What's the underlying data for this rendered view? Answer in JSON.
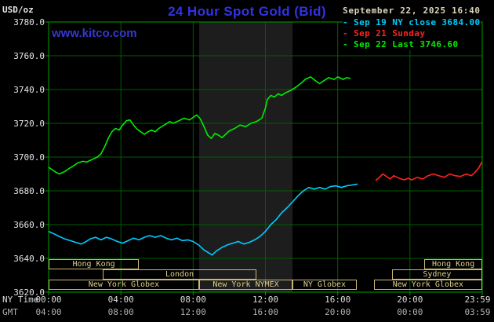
{
  "header": {
    "unit": "USD/oz",
    "title": "24 Hour Spot Gold (Bid)",
    "datetime": "September 22, 2025 16:40",
    "watermark": "www.kitco.com"
  },
  "legend": [
    {
      "id": "sep19-ny-close",
      "marker": "-",
      "label": "Sep 19 NY close 3684.00",
      "color": "#00ccff"
    },
    {
      "id": "sep21-sunday",
      "marker": "-",
      "label": "Sep 21 Sunday",
      "color": "#ff2222"
    },
    {
      "id": "sep22-last",
      "marker": "-",
      "label": "Sep 22 Last 3746.60",
      "color": "#00ee00"
    }
  ],
  "axes": {
    "y_tick_labels": [
      "3780.0",
      "3760.0",
      "3740.0",
      "3720.0",
      "3700.0",
      "3680.0",
      "3660.0",
      "3640.0",
      "3620.0"
    ],
    "tick_hours": [
      0,
      4,
      8,
      12,
      16,
      20,
      24
    ],
    "x_rows": [
      {
        "label": "NY Time",
        "ticks": [
          "00:00",
          "04:00",
          "08:00",
          "12:00",
          "16:00",
          "20:00",
          "23:59"
        ]
      },
      {
        "label": "GMT",
        "ticks": [
          "04:00",
          "08:00",
          "12:00",
          "16:00",
          "20:00",
          "00:00",
          "03:59"
        ]
      }
    ]
  },
  "sessions": [
    {
      "label": "Hong Kong",
      "row": 0,
      "start": 0,
      "end": 5.0
    },
    {
      "label": "Hong Kong",
      "row": 0,
      "start": 20.8,
      "end": 24
    },
    {
      "label": "London",
      "row": 1,
      "start": 3.0,
      "end": 11.5
    },
    {
      "label": "Sydney",
      "row": 1,
      "start": 19.0,
      "end": 24
    },
    {
      "label": "New York Globex",
      "row": 2,
      "start": 0,
      "end": 8.33
    },
    {
      "label": "New York NYMEX",
      "row": 2,
      "start": 8.33,
      "end": 13.5
    },
    {
      "label": "NY Globex",
      "row": 2,
      "start": 13.5,
      "end": 17.05
    },
    {
      "label": "New York Globex",
      "row": 2,
      "start": 18.0,
      "end": 24
    }
  ],
  "colors": {
    "background": "#000000",
    "grid": "#005e00",
    "frame": "#00a000",
    "session_box": "#c9b872",
    "session_text": "#dccf92",
    "title": "#3232e6",
    "watermark": "#3737d2",
    "date_text": "#ddd6bb",
    "axis_text": "#e6e6e6",
    "gmt_text": "#b0b0b0",
    "band": "#1d1d1d"
  },
  "chart_data": {
    "type": "line",
    "title": "24 Hour Spot Gold (Bid)",
    "xlabel": "NY Time (hours)",
    "ylabel": "USD/oz",
    "xlim": [
      0,
      24
    ],
    "ylim": [
      3620,
      3780
    ],
    "grid": true,
    "legend_position": "top-right",
    "shaded_region": {
      "start": 8.33,
      "end": 13.5,
      "color": "#1d1d1d",
      "meaning": "New York NYMEX session"
    },
    "series": [
      {
        "id": "sep19-ny-close",
        "name": "Sep 19 NY close",
        "close": 3684.0,
        "color": "#00ccff",
        "points": [
          [
            0,
            3656
          ],
          [
            0.3,
            3654.5
          ],
          [
            0.6,
            3653
          ],
          [
            0.9,
            3651.5
          ],
          [
            1.2,
            3650.5
          ],
          [
            1.5,
            3649.5
          ],
          [
            1.8,
            3648.5
          ],
          [
            2.0,
            3649.5
          ],
          [
            2.3,
            3651.5
          ],
          [
            2.6,
            3652.5
          ],
          [
            2.9,
            3651
          ],
          [
            3.2,
            3652.5
          ],
          [
            3.5,
            3651.5
          ],
          [
            3.8,
            3650
          ],
          [
            4.1,
            3649
          ],
          [
            4.4,
            3650.5
          ],
          [
            4.7,
            3652
          ],
          [
            5.0,
            3651
          ],
          [
            5.3,
            3652.5
          ],
          [
            5.6,
            3653.5
          ],
          [
            5.9,
            3652.5
          ],
          [
            6.2,
            3653.5
          ],
          [
            6.5,
            3652
          ],
          [
            6.8,
            3651
          ],
          [
            7.1,
            3652
          ],
          [
            7.4,
            3650.5
          ],
          [
            7.7,
            3651
          ],
          [
            8.0,
            3650
          ],
          [
            8.3,
            3648
          ],
          [
            8.6,
            3645
          ],
          [
            8.9,
            3643
          ],
          [
            9.05,
            3642
          ],
          [
            9.3,
            3644.5
          ],
          [
            9.6,
            3646.5
          ],
          [
            9.9,
            3648
          ],
          [
            10.2,
            3649
          ],
          [
            10.5,
            3650
          ],
          [
            10.8,
            3648.5
          ],
          [
            11.1,
            3649.5
          ],
          [
            11.4,
            3651
          ],
          [
            11.7,
            3653
          ],
          [
            12.0,
            3656
          ],
          [
            12.3,
            3660
          ],
          [
            12.6,
            3663
          ],
          [
            12.9,
            3667
          ],
          [
            13.2,
            3670
          ],
          [
            13.5,
            3673.5
          ],
          [
            13.8,
            3677
          ],
          [
            14.1,
            3680
          ],
          [
            14.4,
            3682
          ],
          [
            14.7,
            3681
          ],
          [
            15.0,
            3682
          ],
          [
            15.3,
            3681
          ],
          [
            15.6,
            3682.5
          ],
          [
            15.9,
            3683
          ],
          [
            16.2,
            3682
          ],
          [
            16.5,
            3683
          ],
          [
            16.8,
            3683.5
          ],
          [
            17.1,
            3684
          ]
        ]
      },
      {
        "id": "sep21-sunday",
        "name": "Sep 21 Sunday",
        "color": "#ff2222",
        "points": [
          [
            18.1,
            3686
          ],
          [
            18.3,
            3688
          ],
          [
            18.5,
            3690
          ],
          [
            18.7,
            3688.5
          ],
          [
            18.9,
            3687
          ],
          [
            19.1,
            3689
          ],
          [
            19.3,
            3688
          ],
          [
            19.5,
            3687
          ],
          [
            19.7,
            3686.5
          ],
          [
            19.9,
            3687.5
          ],
          [
            20.1,
            3686.5
          ],
          [
            20.4,
            3688
          ],
          [
            20.7,
            3687
          ],
          [
            21.0,
            3689
          ],
          [
            21.3,
            3690
          ],
          [
            21.6,
            3689
          ],
          [
            21.9,
            3688
          ],
          [
            22.2,
            3690
          ],
          [
            22.5,
            3689
          ],
          [
            22.8,
            3688.5
          ],
          [
            23.1,
            3690
          ],
          [
            23.4,
            3689
          ],
          [
            23.6,
            3691
          ],
          [
            23.8,
            3693.5
          ],
          [
            23.98,
            3697
          ]
        ]
      },
      {
        "id": "sep22-last",
        "name": "Sep 22",
        "last": 3746.6,
        "color": "#00ee00",
        "points": [
          [
            0,
            3694
          ],
          [
            0.2,
            3692.5
          ],
          [
            0.4,
            3691
          ],
          [
            0.6,
            3690
          ],
          [
            0.9,
            3691.5
          ],
          [
            1.1,
            3693
          ],
          [
            1.4,
            3695
          ],
          [
            1.6,
            3696.5
          ],
          [
            1.9,
            3697.5
          ],
          [
            2.1,
            3697
          ],
          [
            2.4,
            3698.5
          ],
          [
            2.7,
            3700
          ],
          [
            2.9,
            3702
          ],
          [
            3.1,
            3706
          ],
          [
            3.3,
            3711
          ],
          [
            3.5,
            3715
          ],
          [
            3.7,
            3717
          ],
          [
            3.9,
            3716
          ],
          [
            4.1,
            3719
          ],
          [
            4.3,
            3721.5
          ],
          [
            4.5,
            3722
          ],
          [
            4.7,
            3719
          ],
          [
            4.9,
            3716.5
          ],
          [
            5.1,
            3715
          ],
          [
            5.3,
            3713.5
          ],
          [
            5.5,
            3715
          ],
          [
            5.7,
            3716
          ],
          [
            5.9,
            3715
          ],
          [
            6.1,
            3717
          ],
          [
            6.4,
            3719
          ],
          [
            6.7,
            3721
          ],
          [
            6.9,
            3720
          ],
          [
            7.2,
            3721.5
          ],
          [
            7.5,
            3723
          ],
          [
            7.8,
            3722
          ],
          [
            8.0,
            3723.5
          ],
          [
            8.2,
            3725
          ],
          [
            8.4,
            3722.5
          ],
          [
            8.6,
            3718
          ],
          [
            8.8,
            3713
          ],
          [
            9.0,
            3711
          ],
          [
            9.2,
            3714
          ],
          [
            9.4,
            3713
          ],
          [
            9.6,
            3711.5
          ],
          [
            9.8,
            3713.5
          ],
          [
            10.0,
            3715.5
          ],
          [
            10.3,
            3717
          ],
          [
            10.6,
            3719
          ],
          [
            10.9,
            3718
          ],
          [
            11.2,
            3720
          ],
          [
            11.5,
            3721
          ],
          [
            11.8,
            3723
          ],
          [
            12.0,
            3729
          ],
          [
            12.1,
            3734
          ],
          [
            12.3,
            3736.5
          ],
          [
            12.5,
            3735.5
          ],
          [
            12.7,
            3737.5
          ],
          [
            12.9,
            3736.5
          ],
          [
            13.1,
            3738
          ],
          [
            13.4,
            3739.5
          ],
          [
            13.7,
            3741.5
          ],
          [
            14.0,
            3744
          ],
          [
            14.2,
            3746
          ],
          [
            14.5,
            3747.5
          ],
          [
            14.8,
            3745
          ],
          [
            15.0,
            3743.5
          ],
          [
            15.2,
            3745
          ],
          [
            15.5,
            3747
          ],
          [
            15.8,
            3746
          ],
          [
            16.0,
            3747.5
          ],
          [
            16.3,
            3746
          ],
          [
            16.5,
            3747
          ],
          [
            16.7,
            3746.6
          ]
        ]
      }
    ]
  }
}
